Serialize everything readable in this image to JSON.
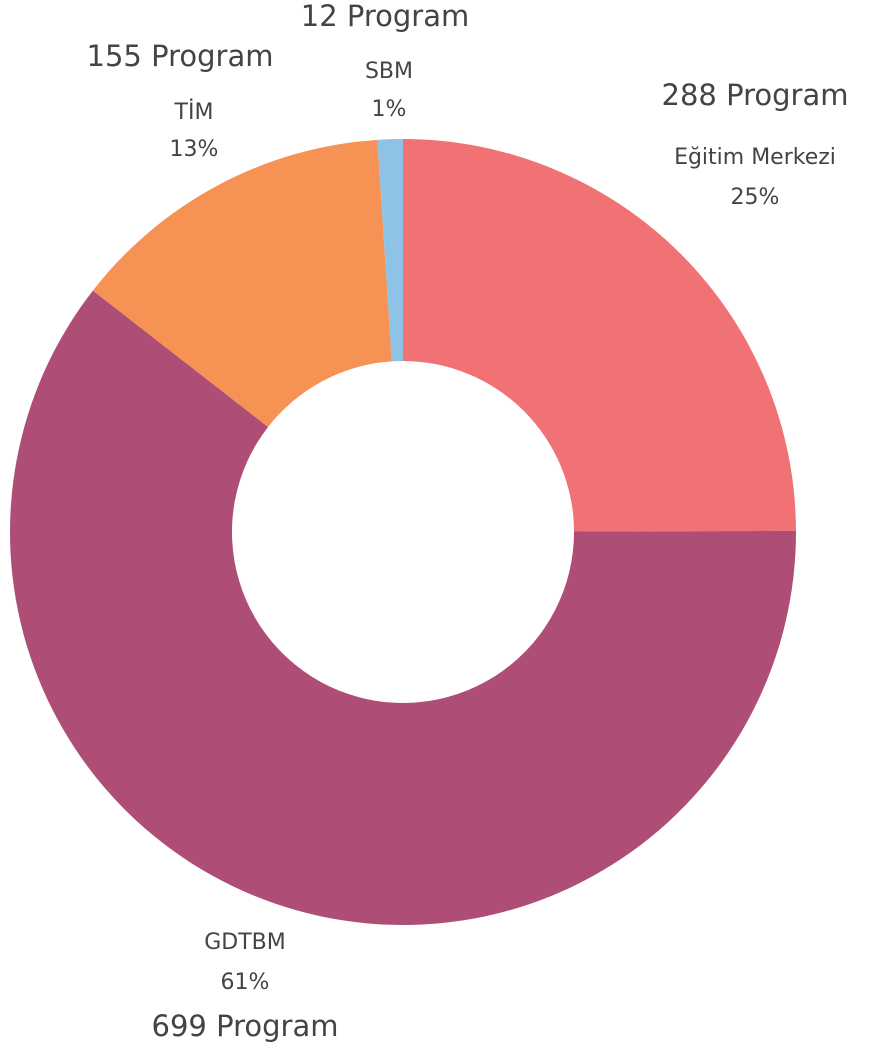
{
  "chart_data": {
    "type": "donut",
    "categories": [
      "Eğitim Merkezi",
      "GDTBM",
      "TİM",
      "SBM"
    ],
    "values": [
      288,
      699,
      155,
      12
    ],
    "value_labels": [
      "288 Program",
      "699 Program",
      "155 Program",
      "12 Program"
    ],
    "percent_labels": [
      "25%",
      "61%",
      "13%",
      "1%"
    ],
    "colors": [
      "#f07275",
      "#ae4e77",
      "#f59254",
      "#8ec3e6"
    ]
  }
}
